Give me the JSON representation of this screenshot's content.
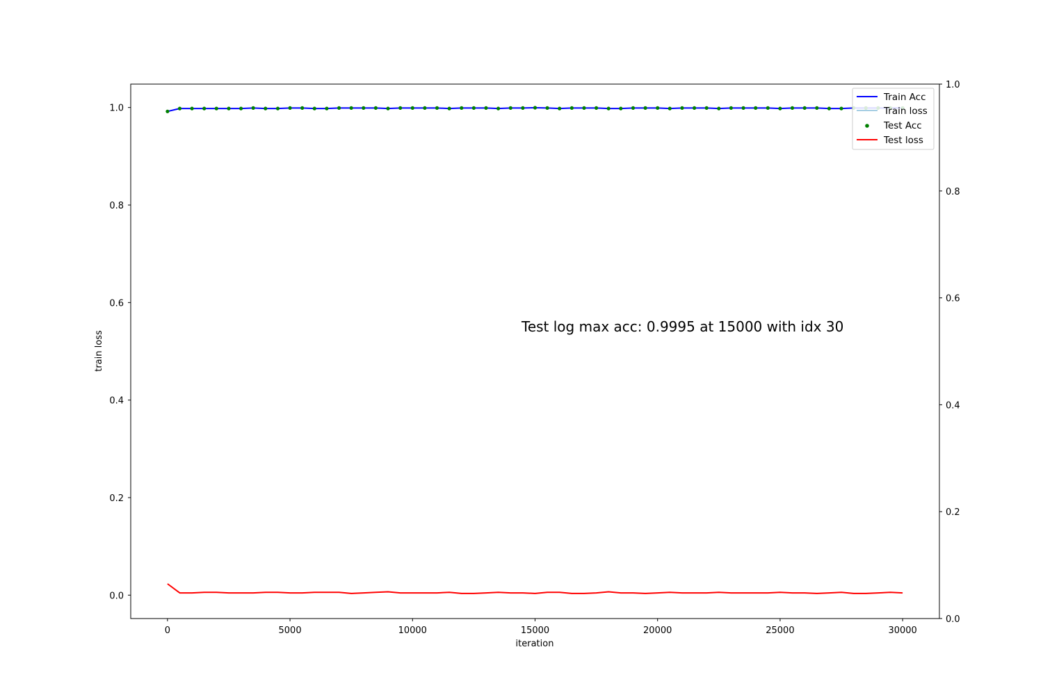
{
  "chart_data": {
    "type": "line",
    "xlabel": "iteration",
    "ylabel_left": "train loss",
    "ylabel_right": "",
    "xlim": [
      -1500,
      31500
    ],
    "ylim_left": [
      -0.048,
      1.048
    ],
    "ylim_right": [
      0.0,
      1.0
    ],
    "x_ticks": [
      0,
      5000,
      10000,
      15000,
      20000,
      25000,
      30000
    ],
    "y_ticks_left": [
      0.0,
      0.2,
      0.4,
      0.6,
      0.8,
      1.0
    ],
    "y_ticks_right": [
      0.0,
      0.2,
      0.4,
      0.6,
      0.8,
      1.0
    ],
    "y_tick_labels_left": [
      "0.0",
      "0.2",
      "0.4",
      "0.6",
      "0.8",
      "1.0"
    ],
    "y_tick_labels_right": [
      "0.0",
      "0.2",
      "0.4",
      "0.6",
      "0.8",
      "1.0"
    ],
    "annotation": "Test log max acc: 0.9995 at 15000 with idx 30",
    "legend_position": "top-right",
    "legend": [
      {
        "label": "Train Acc",
        "color": "#0000ff",
        "style": "line"
      },
      {
        "label": "Train loss",
        "color": "#a6cee3",
        "style": "line"
      },
      {
        "label": "Test Acc",
        "color": "#008000",
        "style": "dot"
      },
      {
        "label": "Test loss",
        "color": "#ff0000",
        "style": "line"
      }
    ],
    "x": [
      0,
      500,
      1000,
      1500,
      2000,
      2500,
      3000,
      3500,
      4000,
      4500,
      5000,
      5500,
      6000,
      6500,
      7000,
      7500,
      8000,
      8500,
      9000,
      9500,
      10000,
      10500,
      11000,
      11500,
      12000,
      12500,
      13000,
      13500,
      14000,
      14500,
      15000,
      15500,
      16000,
      16500,
      17000,
      17500,
      18000,
      18500,
      19000,
      19500,
      20000,
      20500,
      21000,
      21500,
      22000,
      22500,
      23000,
      23500,
      24000,
      24500,
      25000,
      25500,
      26000,
      26500,
      27000,
      27500,
      28000,
      28500,
      29000,
      29500,
      30000
    ],
    "series": [
      {
        "name": "Train Acc",
        "axis": "left",
        "color": "#0000ff",
        "values": [
          0.992,
          0.998,
          0.998,
          0.998,
          0.998,
          0.998,
          0.998,
          0.999,
          0.998,
          0.998,
          0.999,
          0.999,
          0.998,
          0.998,
          0.999,
          0.999,
          0.999,
          0.999,
          0.998,
          0.999,
          0.999,
          0.999,
          0.999,
          0.998,
          0.999,
          0.999,
          0.999,
          0.998,
          0.999,
          0.999,
          0.9995,
          0.999,
          0.998,
          0.999,
          0.999,
          0.999,
          0.998,
          0.998,
          0.999,
          0.999,
          0.999,
          0.998,
          0.999,
          0.999,
          0.999,
          0.998,
          0.999,
          0.999,
          0.999,
          0.999,
          0.998,
          0.999,
          0.999,
          0.999,
          0.998,
          0.998,
          0.999,
          0.999,
          0.999,
          0.999,
          0.999
        ]
      },
      {
        "name": "Test Acc",
        "axis": "left",
        "color": "#008000",
        "values": [
          0.992,
          0.998,
          0.998,
          0.998,
          0.998,
          0.998,
          0.998,
          0.999,
          0.998,
          0.998,
          0.999,
          0.999,
          0.998,
          0.998,
          0.999,
          0.999,
          0.999,
          0.999,
          0.998,
          0.999,
          0.999,
          0.999,
          0.999,
          0.998,
          0.999,
          0.999,
          0.999,
          0.998,
          0.999,
          0.999,
          0.9995,
          0.999,
          0.998,
          0.999,
          0.999,
          0.999,
          0.998,
          0.998,
          0.999,
          0.999,
          0.999,
          0.998,
          0.999,
          0.999,
          0.999,
          0.998,
          0.999,
          0.999,
          0.999,
          0.999,
          0.998,
          0.999,
          0.999,
          0.999,
          0.998,
          0.998,
          0.999,
          0.999,
          0.999,
          0.999,
          0.999
        ]
      },
      {
        "name": "Test loss",
        "axis": "right",
        "color": "#ff0000",
        "values": [
          0.065,
          0.048,
          0.048,
          0.049,
          0.049,
          0.048,
          0.048,
          0.048,
          0.049,
          0.049,
          0.048,
          0.048,
          0.049,
          0.049,
          0.049,
          0.047,
          0.048,
          0.049,
          0.05,
          0.048,
          0.048,
          0.048,
          0.048,
          0.049,
          0.047,
          0.047,
          0.048,
          0.049,
          0.048,
          0.048,
          0.047,
          0.049,
          0.049,
          0.047,
          0.047,
          0.048,
          0.05,
          0.048,
          0.048,
          0.047,
          0.048,
          0.049,
          0.048,
          0.048,
          0.048,
          0.049,
          0.048,
          0.048,
          0.048,
          0.048,
          0.049,
          0.048,
          0.048,
          0.047,
          0.048,
          0.049,
          0.047,
          0.047,
          0.048,
          0.049,
          0.048
        ]
      }
    ]
  }
}
